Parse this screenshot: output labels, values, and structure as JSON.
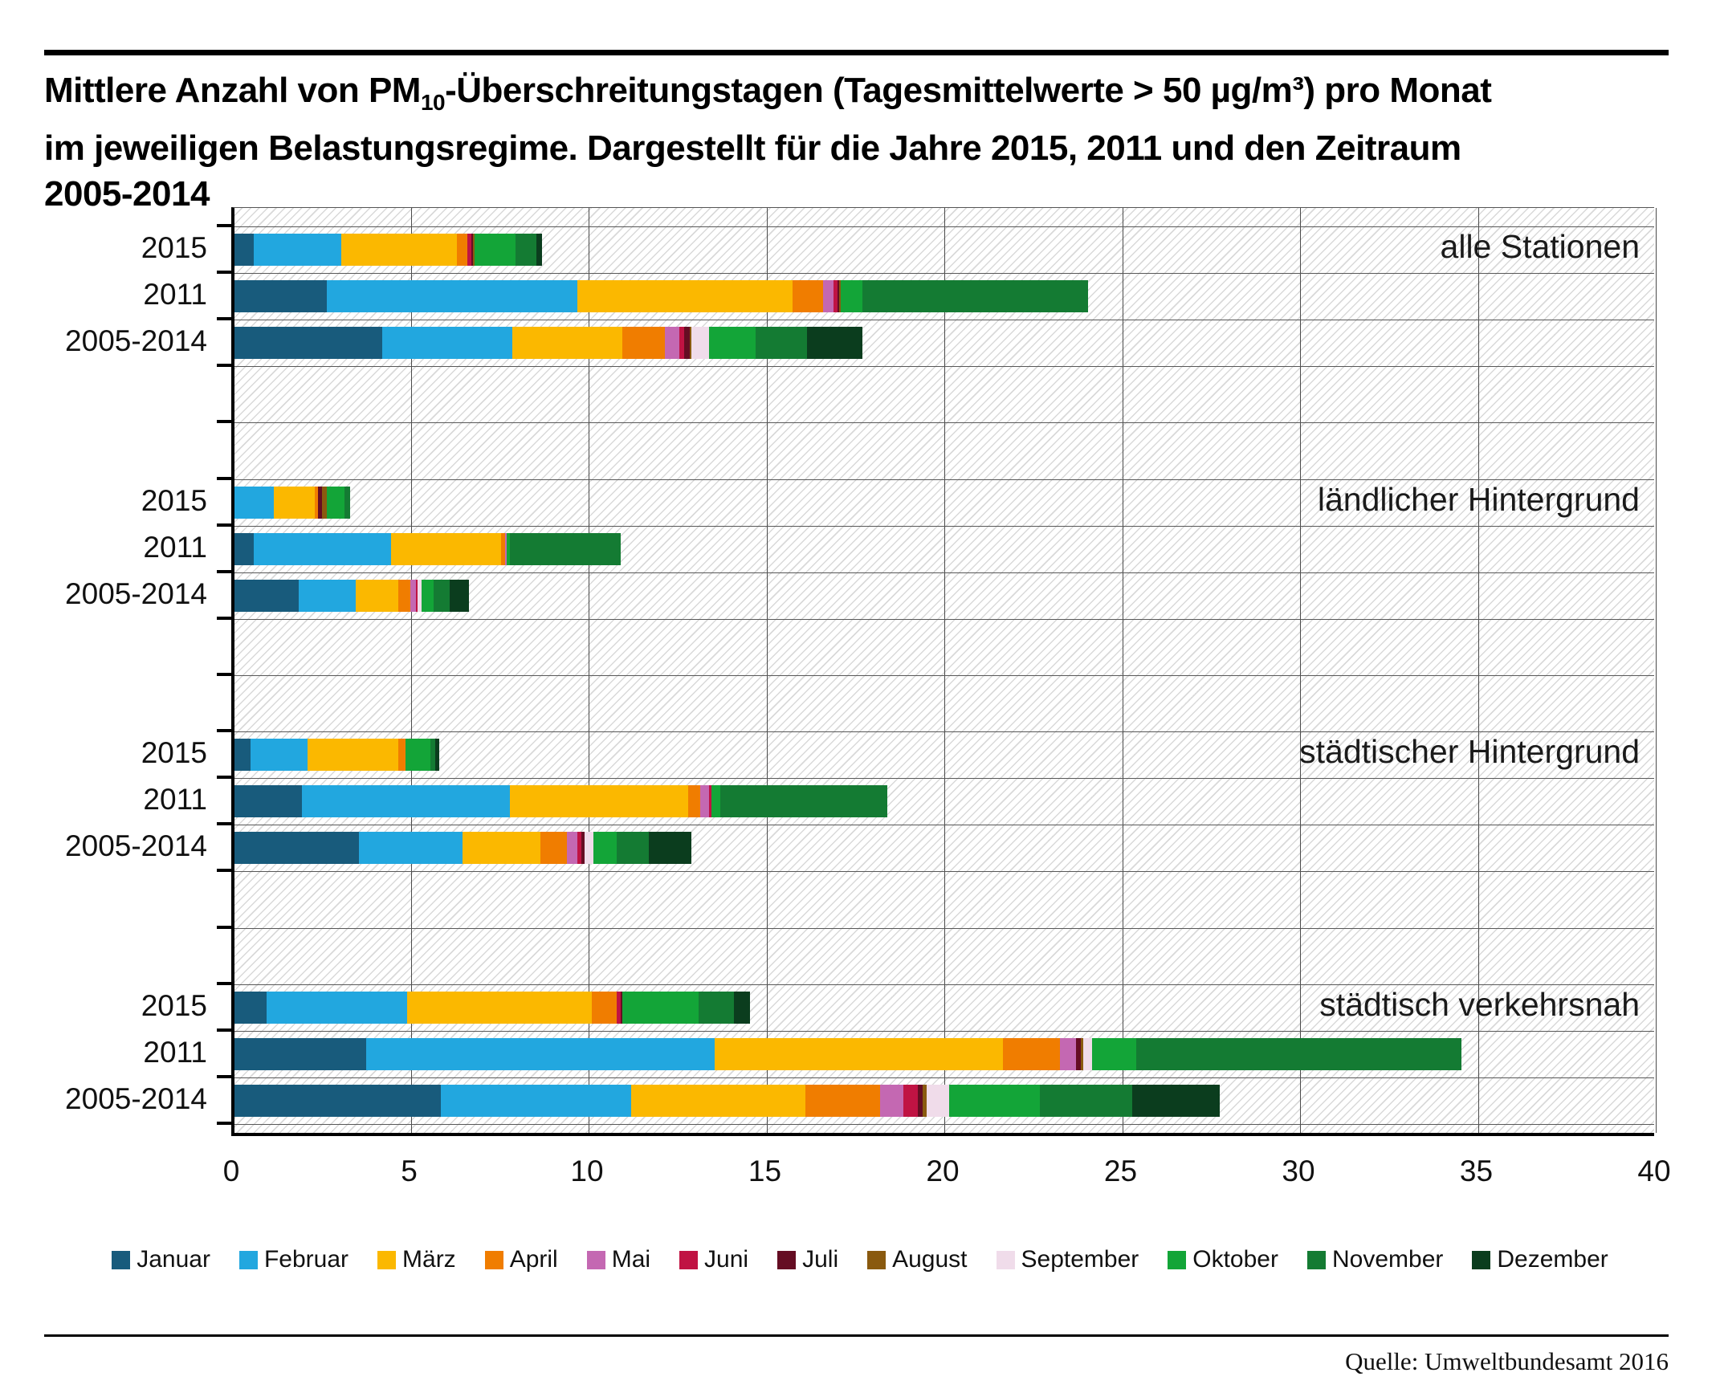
{
  "header": {
    "title_pm_prefix": "Mittlere Anzahl von PM",
    "title_pm_sub": "10",
    "title_line1_rest": "-Überschreitungstagen (Tagesmittelwerte > 50 µg/m³) pro Monat",
    "title_line2": "im jeweiligen Belastungsregime. Dargestellt für die Jahre 2015, 2011 und den Zeitraum",
    "title_line3": "2005-2014"
  },
  "footer": {
    "source": "Quelle: Umweltbundesamt 2016"
  },
  "chart_data": {
    "type": "bar",
    "orientation": "horizontal-stacked",
    "title": "Mittlere Anzahl von PM10-Überschreitungstagen (Tagesmittelwerte > 50 µg/m³) pro Monat im jeweiligen Belastungsregime. Dargestellt für die Jahre 2015, 2011 und den Zeitraum 2005-2014",
    "xlim": [
      0,
      40
    ],
    "xticks": [
      0,
      5,
      10,
      15,
      20,
      25,
      30,
      35,
      40
    ],
    "grid": "vertical gridlines every 5 units, hatched plot background",
    "legend_position": "bottom",
    "unit": "Tage pro Monat",
    "months": [
      "Januar",
      "Februar",
      "März",
      "April",
      "Mai",
      "Juni",
      "Juli",
      "August",
      "September",
      "Oktober",
      "November",
      "Dezember"
    ],
    "month_colors": {
      "Januar": "#185b7c",
      "Februar": "#22a7df",
      "März": "#fbb800",
      "April": "#f07d00",
      "Mai": "#c468b2",
      "Juni": "#c01343",
      "Juli": "#650d23",
      "August": "#8a5a0f",
      "September": "#f0dcea",
      "Oktober": "#13a538",
      "November": "#147b33",
      "Dezember": "#0b3d1e"
    },
    "groups": [
      {
        "label": "alle Stationen",
        "rows": [
          {
            "period": "2015",
            "values": [
              0.55,
              2.45,
              3.25,
              0.3,
              0.0,
              0.1,
              0.05,
              0.05,
              0.0,
              1.15,
              0.6,
              0.15
            ],
            "total": 8.65
          },
          {
            "period": "2011",
            "values": [
              2.6,
              7.05,
              6.05,
              0.85,
              0.3,
              0.1,
              0.05,
              0.05,
              0.0,
              0.6,
              6.35,
              0.0
            ],
            "total": 24.0
          },
          {
            "period": "2005-2014",
            "values": [
              4.15,
              3.65,
              3.1,
              1.2,
              0.4,
              0.15,
              0.15,
              0.05,
              0.5,
              1.3,
              1.45,
              1.55
            ],
            "total": 17.65
          }
        ]
      },
      {
        "label": "ländlicher Hintergrund",
        "rows": [
          {
            "period": "2015",
            "values": [
              0.0,
              1.1,
              1.15,
              0.1,
              0.0,
              0.0,
              0.1,
              0.15,
              0.0,
              0.5,
              0.15,
              0.0
            ],
            "total": 3.25
          },
          {
            "period": "2011",
            "values": [
              0.55,
              3.85,
              3.1,
              0.1,
              0.05,
              0.0,
              0.0,
              0.0,
              0.0,
              0.1,
              3.1,
              0.0
            ],
            "total": 10.85
          },
          {
            "period": "2005-2014",
            "values": [
              1.8,
              1.6,
              1.2,
              0.35,
              0.15,
              0.05,
              0.0,
              0.0,
              0.1,
              0.35,
              0.45,
              0.55
            ],
            "total": 6.6
          }
        ]
      },
      {
        "label": "städtischer Hintergrund",
        "rows": [
          {
            "period": "2015",
            "values": [
              0.45,
              1.6,
              2.55,
              0.2,
              0.0,
              0.0,
              0.0,
              0.0,
              0.0,
              0.7,
              0.15,
              0.1
            ],
            "total": 5.75
          },
          {
            "period": "2011",
            "values": [
              1.9,
              5.85,
              5.0,
              0.35,
              0.25,
              0.05,
              0.0,
              0.0,
              0.0,
              0.25,
              4.7,
              0.0
            ],
            "total": 18.35
          },
          {
            "period": "2005-2014",
            "values": [
              3.5,
              2.9,
              2.2,
              0.75,
              0.3,
              0.1,
              0.1,
              0.0,
              0.25,
              0.65,
              0.9,
              1.2
            ],
            "total": 12.85
          }
        ]
      },
      {
        "label": "städtisch verkehrsnah",
        "rows": [
          {
            "period": "2015",
            "values": [
              0.9,
              3.95,
              5.2,
              0.7,
              0.0,
              0.1,
              0.05,
              0.0,
              0.0,
              2.15,
              1.0,
              0.45
            ],
            "total": 14.5
          },
          {
            "period": "2011",
            "values": [
              3.7,
              9.8,
              8.1,
              1.6,
              0.45,
              0.0,
              0.15,
              0.05,
              0.25,
              1.25,
              9.15,
              0.0
            ],
            "total": 34.5
          },
          {
            "period": "2005-2014",
            "values": [
              5.8,
              5.35,
              4.9,
              2.1,
              0.65,
              0.4,
              0.15,
              0.1,
              0.65,
              2.55,
              2.6,
              2.45
            ],
            "total": 27.7
          }
        ]
      }
    ]
  }
}
